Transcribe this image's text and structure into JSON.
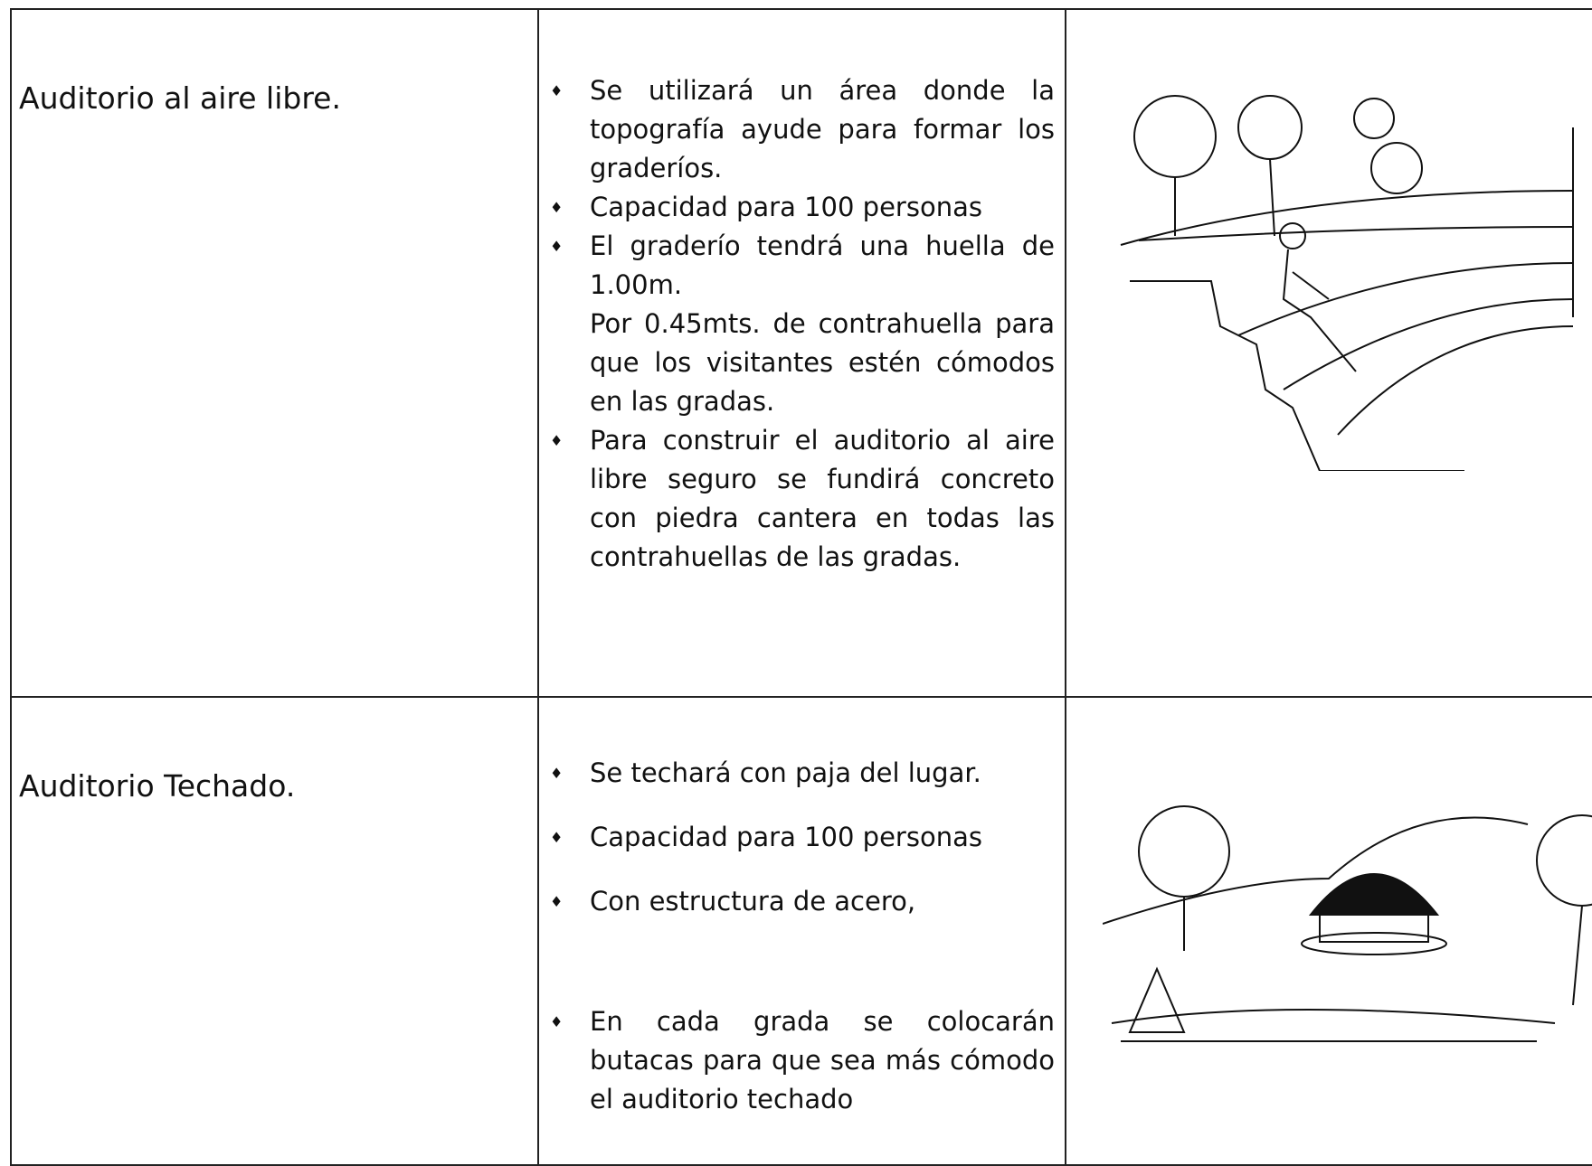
{
  "table": {
    "rows": [
      {
        "name": "Auditorio al aire libre.",
        "items": [
          [
            "Se utilizará un área donde la topografía ayude para formar los graderíos."
          ],
          [
            "Capacidad para 100 personas"
          ],
          [
            "El graderío tendrá una huella de 1.00m.",
            "Por 0.45mts. de contrahuella para que los visitantes estén cómodos en las gradas."
          ],
          [
            "Para construir el auditorio al aire libre seguro se fundirá concreto con piedra cantera en todas las contrahuellas de las gradas."
          ]
        ]
      },
      {
        "name": "Auditorio Techado.",
        "items": [
          [
            "Se techará con paja del lugar."
          ],
          [
            "Capacidad para 100 personas"
          ],
          [
            "Con estructura de acero,"
          ],
          [
            "En cada grada se colocarán butacas para que sea más cómodo el auditorio techado"
          ]
        ]
      }
    ]
  }
}
